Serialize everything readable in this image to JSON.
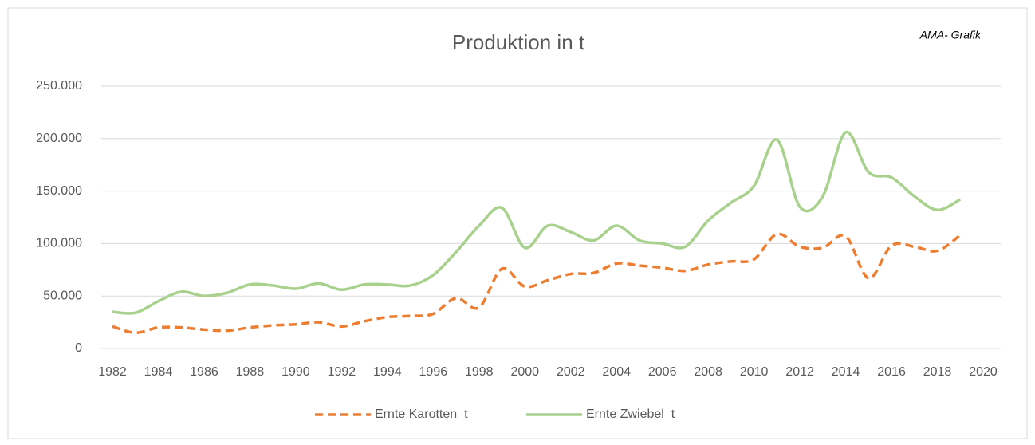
{
  "chart_data": {
    "type": "line",
    "title": "Produktion in t",
    "annotation": "AMA- Grafik",
    "x": [
      1982,
      1983,
      1984,
      1985,
      1986,
      1987,
      1988,
      1989,
      1990,
      1991,
      1992,
      1993,
      1994,
      1995,
      1996,
      1997,
      1998,
      1999,
      2000,
      2001,
      2002,
      2003,
      2004,
      2005,
      2006,
      2007,
      2008,
      2009,
      2010,
      2011,
      2012,
      2013,
      2014,
      2015,
      2016,
      2017,
      2018,
      2019
    ],
    "series": [
      {
        "name": "Ernte Karotten  t",
        "color": "#ed7d31",
        "dashed": true,
        "values": [
          21000,
          15000,
          20000,
          20000,
          18000,
          17000,
          20000,
          22000,
          23000,
          25000,
          21000,
          26000,
          30000,
          31000,
          33000,
          48000,
          39000,
          76000,
          59000,
          65000,
          71000,
          72000,
          81000,
          79000,
          77000,
          74000,
          80000,
          83000,
          85000,
          109000,
          97000,
          96000,
          107000,
          67000,
          98000,
          97000,
          93000,
          108000
        ]
      },
      {
        "name": "Ernte Zwiebel  t",
        "color": "#a9d18e",
        "dashed": false,
        "values": [
          35000,
          34000,
          45000,
          54000,
          50000,
          53000,
          61000,
          60000,
          57000,
          62000,
          56000,
          61000,
          61000,
          60000,
          70000,
          92000,
          117000,
          134000,
          96000,
          117000,
          111000,
          103000,
          117000,
          103000,
          100000,
          97000,
          122000,
          139000,
          155000,
          199000,
          135000,
          145000,
          206000,
          168000,
          163000,
          145000,
          132000,
          142000
        ]
      }
    ],
    "xlim": [
      1982,
      2020
    ],
    "xticks": [
      1982,
      1984,
      1986,
      1988,
      1990,
      1992,
      1994,
      1996,
      1998,
      2000,
      2002,
      2004,
      2006,
      2008,
      2010,
      2012,
      2014,
      2016,
      2018,
      2020
    ],
    "ylim": [
      0,
      250000
    ],
    "yticks": [
      0,
      {
        "value": 50000,
        "label": "50.000"
      },
      {
        "value": 100000,
        "label": "100.000"
      },
      {
        "value": 150000,
        "label": "150.000"
      },
      {
        "value": 200000,
        "label": "200.000"
      },
      {
        "value": 250000,
        "label": "250.000"
      }
    ],
    "grid": true,
    "legend": "bottom"
  }
}
